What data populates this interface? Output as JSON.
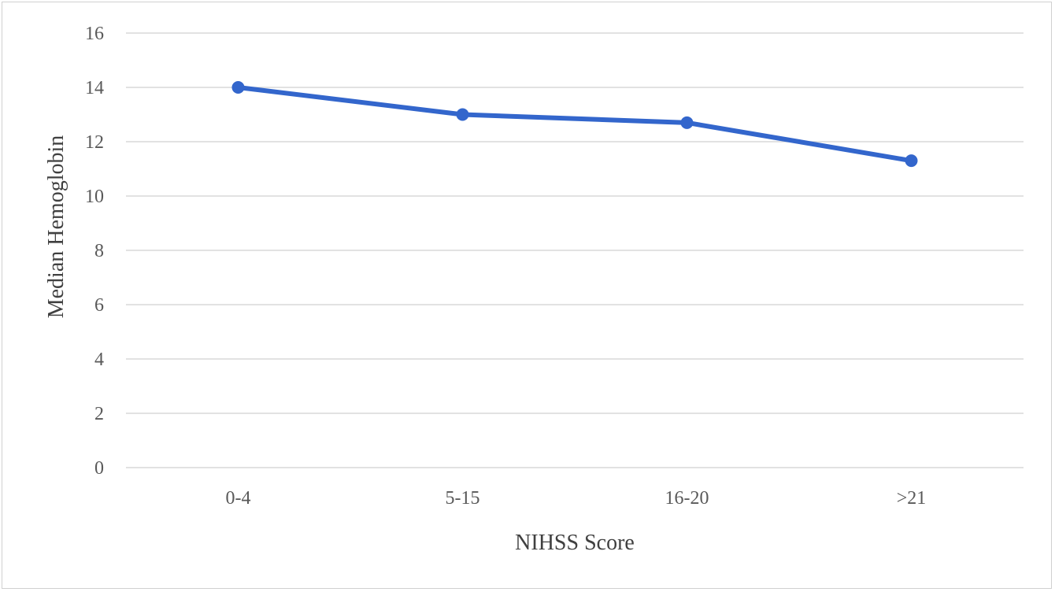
{
  "chart_data": {
    "type": "line",
    "title": "",
    "xlabel": "NIHSS Score",
    "ylabel": "Median Hemoglobin",
    "categories": [
      "0-4",
      "5-15",
      "16-20",
      ">21"
    ],
    "series": [
      {
        "values": [
          14.0,
          13.0,
          12.7,
          11.3
        ],
        "color": "#3366CC"
      }
    ],
    "ylim": [
      0,
      16
    ],
    "yticks": [
      "0",
      "2",
      "4",
      "6",
      "8",
      "10",
      "12",
      "14",
      "16"
    ],
    "grid": true,
    "legend": "none",
    "colors": {
      "gridline": "#d9d9d9",
      "series": "#3366CC"
    }
  }
}
